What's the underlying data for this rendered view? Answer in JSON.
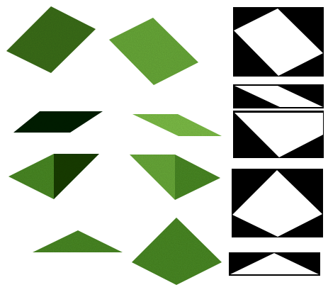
{
  "background": "#ffffff",
  "palette": {
    "grass_dark": "#3c6f1c",
    "grass_mid": "#4b8a26",
    "grass_light": "#6bab3a",
    "grass_lighter": "#7fc04a",
    "grass_shadow": "#1f4010",
    "grass_deep_shadow": "#0f2408",
    "mask_black": "#000000",
    "mask_white": "#ffffff"
  },
  "grass_tiles": [
    {
      "id": "tile-flat-dark",
      "shade": "grass_dark"
    },
    {
      "id": "tile-flat-light",
      "shade": "grass_light"
    },
    {
      "id": "tile-thin-dark",
      "shade": "grass_deep_shadow"
    },
    {
      "id": "tile-thin-light",
      "shade": "grass_lighter"
    },
    {
      "id": "tile-ridge-dark",
      "shade": "grass_mid"
    },
    {
      "id": "tile-ridge-light",
      "shade": "grass_light"
    },
    {
      "id": "tile-wedge",
      "shade": "grass_mid"
    },
    {
      "id": "tile-pyramid",
      "shade": "grass_mid"
    }
  ],
  "mask_tiles": [
    {
      "id": "mask-flat"
    },
    {
      "id": "mask-thin"
    },
    {
      "id": "mask-sloped"
    },
    {
      "id": "mask-diamond"
    },
    {
      "id": "mask-wedge"
    }
  ]
}
